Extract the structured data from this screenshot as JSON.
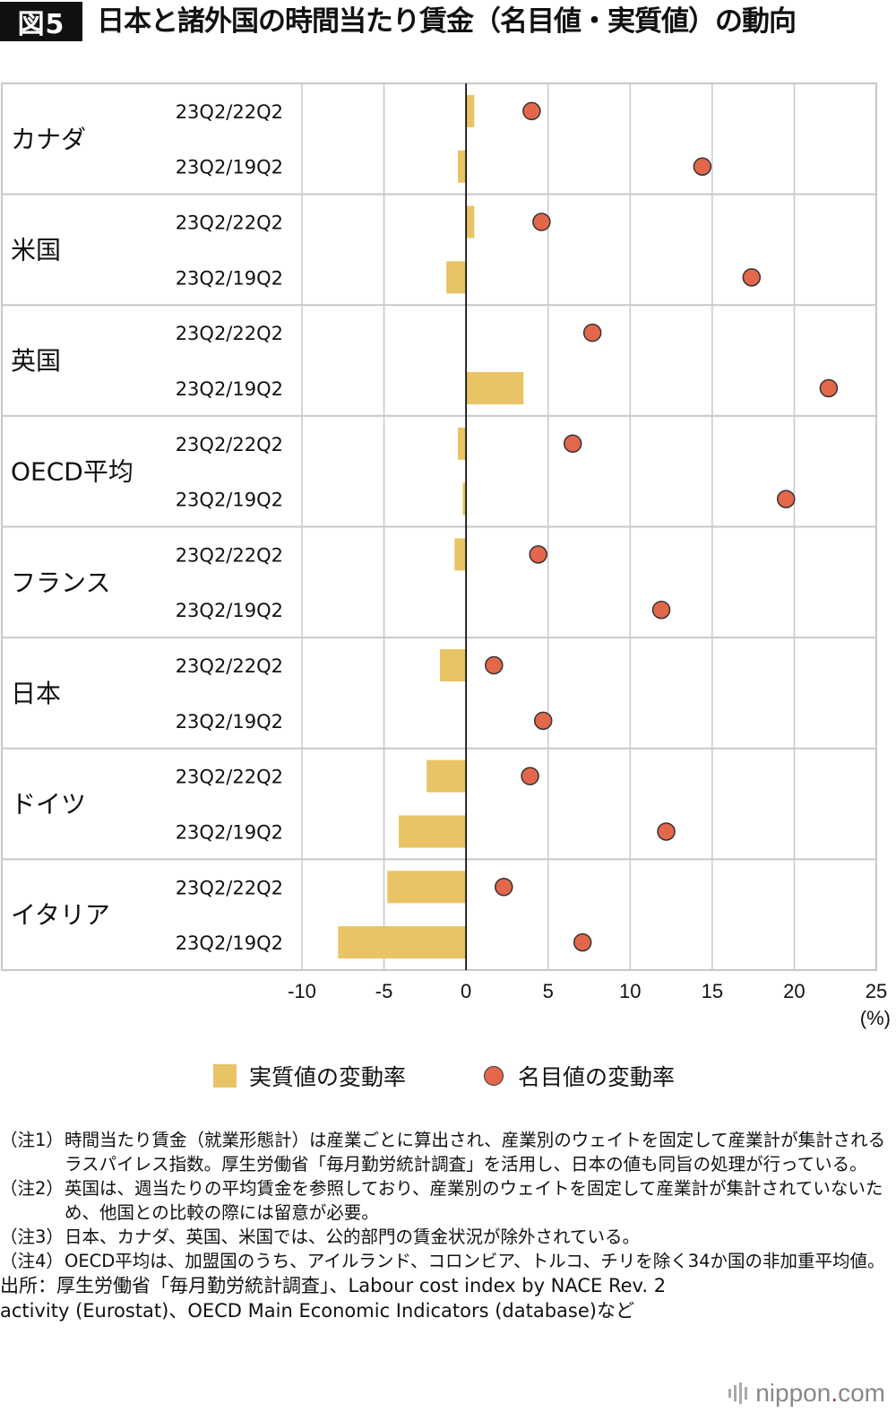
{
  "header": {
    "badge": "図5",
    "title": "日本と諸外国の時間当たり賃金（名目値・実質値）の動向"
  },
  "chart_data": {
    "type": "bar",
    "orientation": "horizontal",
    "title": "日本と諸外国の時間当たり賃金（名目値・実質値）の動向",
    "unit_label": "(%)",
    "xlim": [
      -10,
      25
    ],
    "xticks": [
      -10,
      -5,
      0,
      5,
      10,
      15,
      20,
      25
    ],
    "grid": true,
    "groups": [
      {
        "name": "カナダ",
        "rows": [
          {
            "label": "23Q2/22Q2",
            "real": 0.5,
            "nominal": 4.0
          },
          {
            "label": "23Q2/19Q2",
            "real": -0.5,
            "nominal": 14.4
          }
        ]
      },
      {
        "name": "米国",
        "rows": [
          {
            "label": "23Q2/22Q2",
            "real": 0.5,
            "nominal": 4.6
          },
          {
            "label": "23Q2/19Q2",
            "real": -1.2,
            "nominal": 17.4
          }
        ]
      },
      {
        "name": "英国",
        "rows": [
          {
            "label": "23Q2/22Q2",
            "real": 0.0,
            "nominal": 7.7
          },
          {
            "label": "23Q2/19Q2",
            "real": 3.5,
            "nominal": 22.1
          }
        ]
      },
      {
        "name": "OECD平均",
        "rows": [
          {
            "label": "23Q2/22Q2",
            "real": -0.5,
            "nominal": 6.5
          },
          {
            "label": "23Q2/19Q2",
            "real": -0.2,
            "nominal": 19.5
          }
        ]
      },
      {
        "name": "フランス",
        "rows": [
          {
            "label": "23Q2/22Q2",
            "real": -0.7,
            "nominal": 4.4
          },
          {
            "label": "23Q2/19Q2",
            "real": 0.0,
            "nominal": 11.9
          }
        ]
      },
      {
        "name": "日本",
        "rows": [
          {
            "label": "23Q2/22Q2",
            "real": -1.6,
            "nominal": 1.7
          },
          {
            "label": "23Q2/19Q2",
            "real": 0.0,
            "nominal": 4.7
          }
        ]
      },
      {
        "name": "ドイツ",
        "rows": [
          {
            "label": "23Q2/22Q2",
            "real": -2.4,
            "nominal": 3.9
          },
          {
            "label": "23Q2/19Q2",
            "real": -4.1,
            "nominal": 12.2
          }
        ]
      },
      {
        "name": "イタリア",
        "rows": [
          {
            "label": "23Q2/22Q2",
            "real": -4.8,
            "nominal": 2.3
          },
          {
            "label": "23Q2/19Q2",
            "real": -7.8,
            "nominal": 7.1
          }
        ]
      }
    ],
    "legend": {
      "real": "実質値の変動率",
      "nominal": "名目値の変動率",
      "placement": "bottom"
    },
    "colors": {
      "real": "#e8c466",
      "nominal": "#e2674b",
      "grid": "#c8c8c8",
      "zero": "#111111"
    }
  },
  "notes": [
    {
      "label": "（注1）",
      "text": "時間当たり賃金（就業形態計）は産業ごとに算出され、産業別のウェイトを固定して産業計が集計されるラスパイレス指数。厚生労働省「毎月勤労統計調査」を活用し、日本の値も同旨の処理が行っている。"
    },
    {
      "label": "（注2）",
      "text": "英国は、週当たりの平均賃金を参照しており、産業別のウェイトを固定して産業計が集計されていないため、他国との比較の際には留意が必要。"
    },
    {
      "label": "（注3）",
      "text": "日本、カナダ、英国、米国では、公的部門の賃金状況が除外されている。"
    },
    {
      "label": "（注4）",
      "text": "OECD平均は、加盟国のうち、アイルランド、コロンビア、トルコ、チリを除く34か国の非加重平均値。"
    }
  ],
  "source": "出所：厚生労働省「毎月勤労統計調査」、Labour cost index by NACE Rev. 2 activity (Eurostat)、OECD Main Economic Indicators (database)など",
  "brand": {
    "name": "nippon",
    "dot": ".",
    "suffix": "com"
  }
}
